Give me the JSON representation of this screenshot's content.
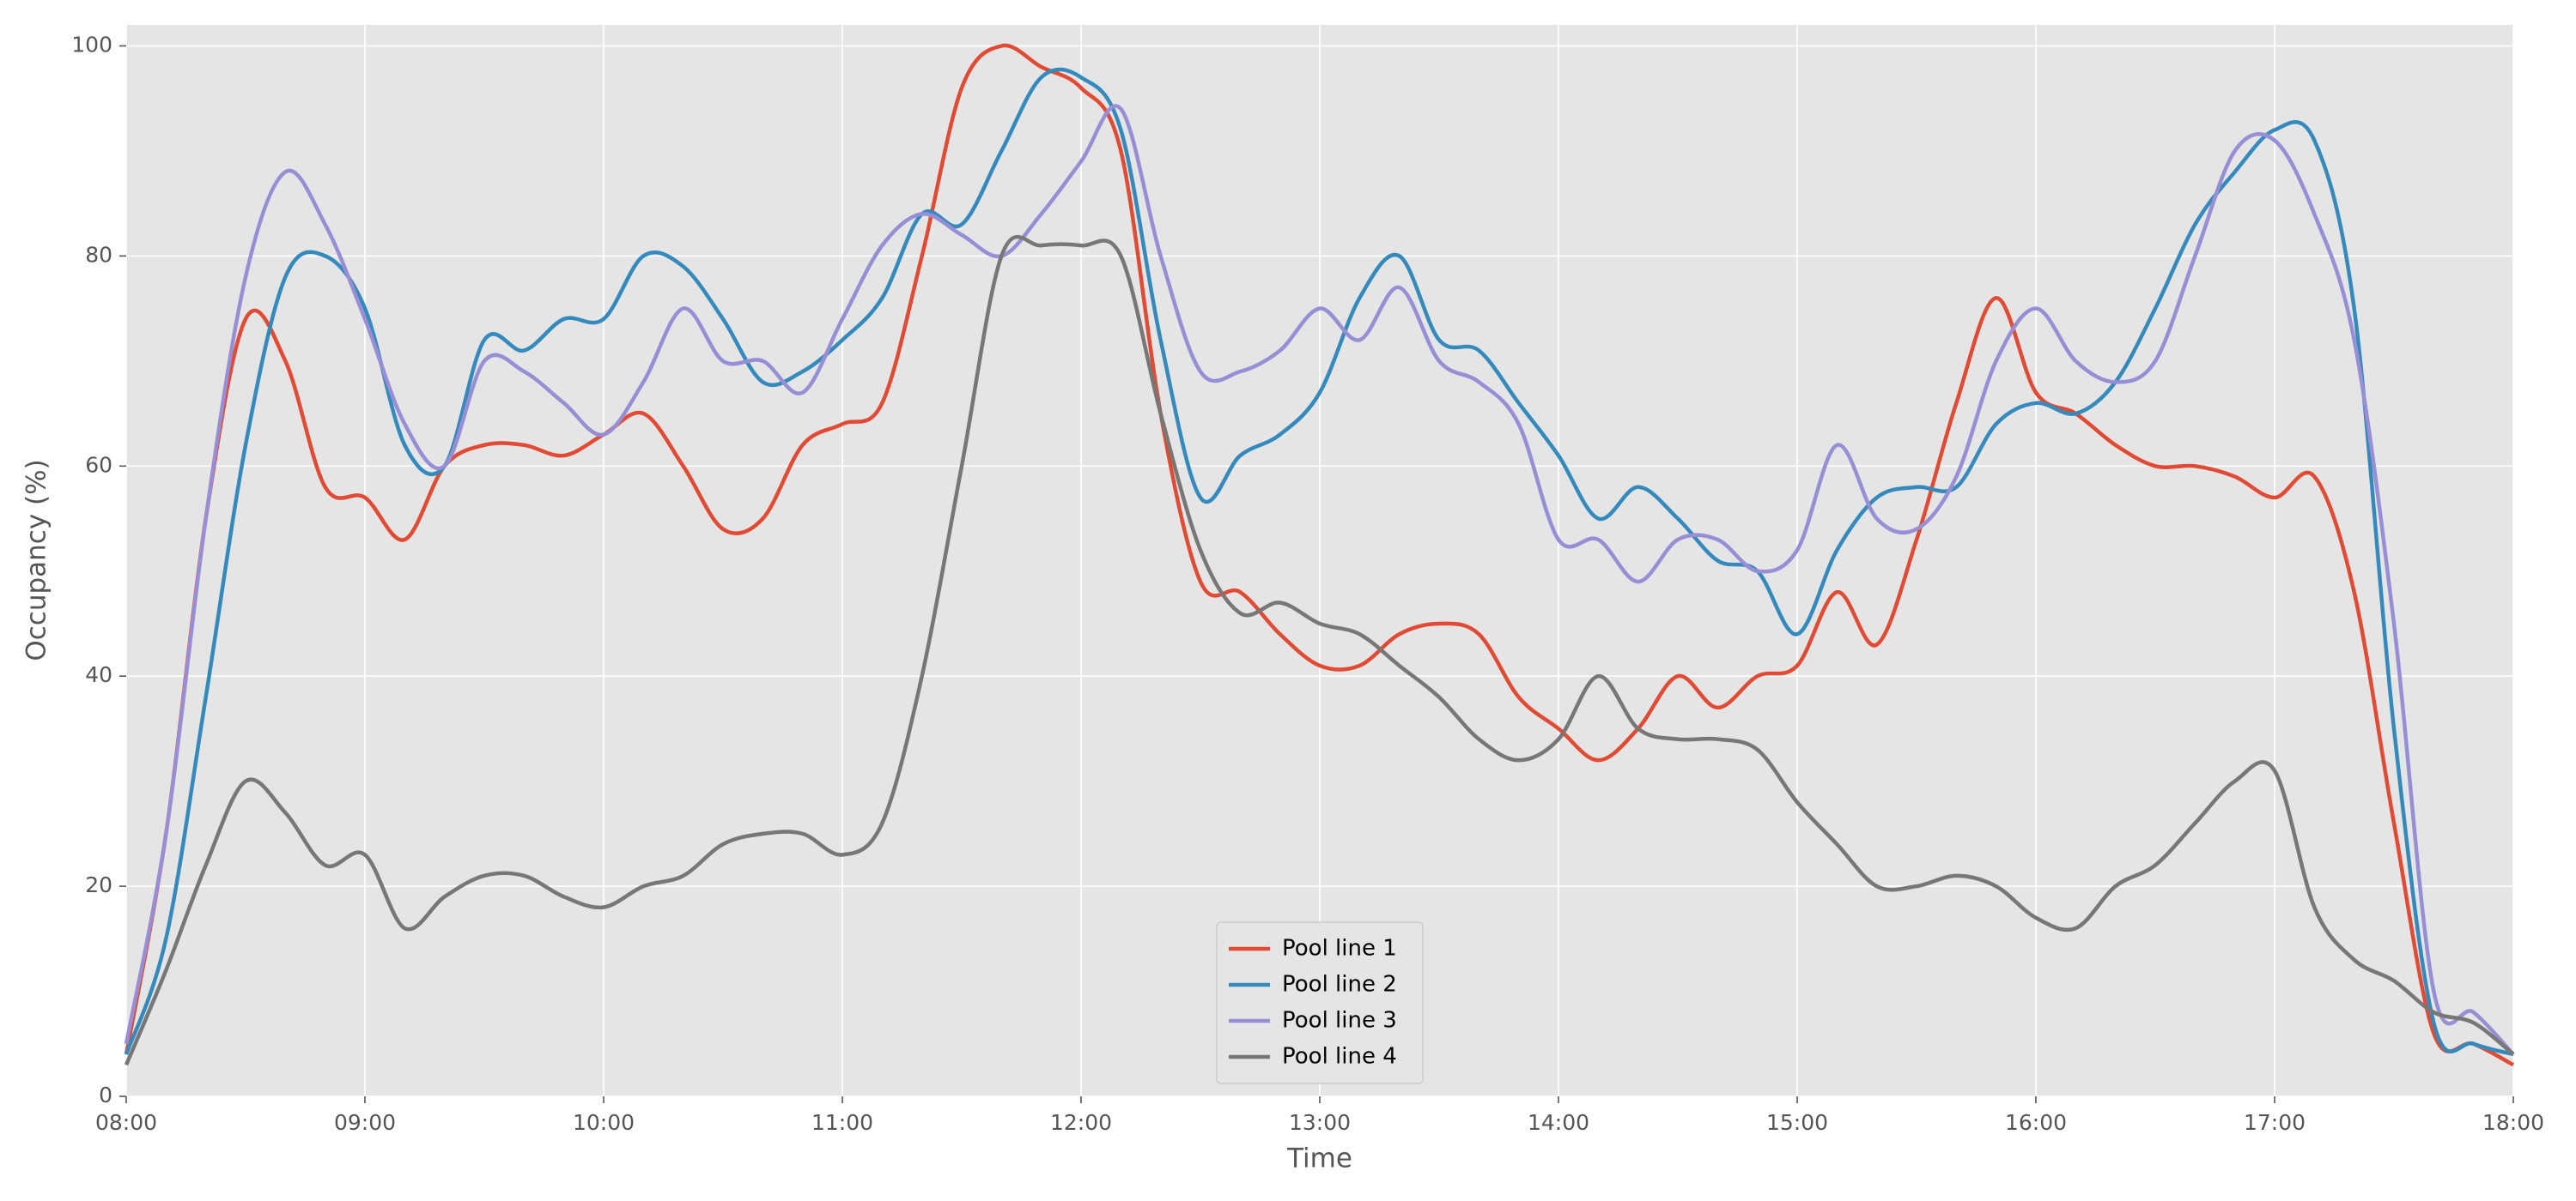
{
  "chart_data": {
    "type": "line",
    "x_label": "Time",
    "y_label": "Occupancy (%)",
    "x": [
      "08:00",
      "08:10",
      "08:20",
      "08:30",
      "08:40",
      "08:50",
      "09:00",
      "09:10",
      "09:20",
      "09:30",
      "09:40",
      "09:50",
      "10:00",
      "10:10",
      "10:20",
      "10:30",
      "10:40",
      "10:50",
      "11:00",
      "11:10",
      "11:20",
      "11:30",
      "11:40",
      "11:50",
      "12:00",
      "12:10",
      "12:20",
      "12:30",
      "12:40",
      "12:50",
      "13:00",
      "13:10",
      "13:20",
      "13:30",
      "13:40",
      "13:50",
      "14:00",
      "14:10",
      "14:20",
      "14:30",
      "14:40",
      "14:50",
      "15:00",
      "15:10",
      "15:20",
      "15:30",
      "15:40",
      "15:50",
      "16:00",
      "16:10",
      "16:20",
      "16:30",
      "16:40",
      "16:50",
      "17:00",
      "17:10",
      "17:20",
      "17:30",
      "17:40",
      "17:50",
      "18:00"
    ],
    "series": [
      {
        "name": "Pool line 1",
        "color": "#E24A33",
        "values": [
          4,
          25,
          55,
          74,
          70,
          58,
          57,
          53,
          60,
          62,
          62,
          61,
          63,
          65,
          60,
          54,
          55,
          62,
          64,
          66,
          80,
          96,
          100,
          98,
          96,
          90,
          65,
          49,
          48,
          44,
          41,
          41,
          44,
          45,
          44,
          38,
          35,
          32,
          35,
          40,
          37,
          40,
          41,
          48,
          43,
          53,
          66,
          76,
          67,
          65,
          62,
          60,
          60,
          59,
          57,
          59,
          48,
          26,
          6,
          5,
          3
        ]
      },
      {
        "name": "Pool line 2",
        "color": "#348ABD",
        "values": [
          4,
          15,
          38,
          62,
          78,
          80,
          75,
          62,
          60,
          72,
          71,
          74,
          74,
          80,
          79,
          74,
          68,
          69,
          72,
          76,
          84,
          83,
          90,
          97,
          97,
          92,
          72,
          57,
          61,
          63,
          67,
          76,
          80,
          72,
          71,
          66,
          61,
          55,
          58,
          55,
          51,
          50,
          44,
          52,
          57,
          58,
          58,
          64,
          66,
          65,
          68,
          75,
          83,
          88,
          92,
          91,
          75,
          35,
          7,
          5,
          4
        ]
      },
      {
        "name": "Pool line 3",
        "color": "#988ED5",
        "values": [
          5,
          25,
          55,
          78,
          88,
          83,
          74,
          64,
          60,
          70,
          69,
          66,
          63,
          68,
          75,
          70,
          70,
          67,
          74,
          81,
          84,
          82,
          80,
          84,
          89,
          94,
          80,
          69,
          69,
          71,
          75,
          72,
          77,
          70,
          68,
          64,
          53,
          53,
          49,
          53,
          53,
          50,
          52,
          62,
          55,
          54,
          59,
          70,
          75,
          70,
          68,
          70,
          80,
          90,
          91,
          84,
          72,
          45,
          10,
          8,
          4
        ]
      },
      {
        "name": "Pool line 4",
        "color": "#777777",
        "values": [
          3,
          12,
          22,
          30,
          27,
          22,
          23,
          16,
          19,
          21,
          21,
          19,
          18,
          20,
          21,
          24,
          25,
          25,
          23,
          26,
          40,
          60,
          80,
          81,
          81,
          80,
          65,
          52,
          46,
          47,
          45,
          44,
          41,
          38,
          34,
          32,
          34,
          40,
          35,
          34,
          34,
          33,
          28,
          24,
          20,
          20,
          21,
          20,
          17,
          16,
          20,
          22,
          26,
          30,
          31,
          18,
          13,
          11,
          8,
          7,
          4
        ]
      }
    ],
    "xlim": [
      "08:00",
      "18:00"
    ],
    "xticks": [
      "08:00",
      "09:00",
      "10:00",
      "11:00",
      "12:00",
      "13:00",
      "14:00",
      "15:00",
      "16:00",
      "17:00",
      "18:00"
    ],
    "ylim": [
      0,
      102
    ],
    "yticks": [
      0,
      20,
      40,
      60,
      80,
      100
    ],
    "grid": true,
    "legend": "lower center"
  }
}
